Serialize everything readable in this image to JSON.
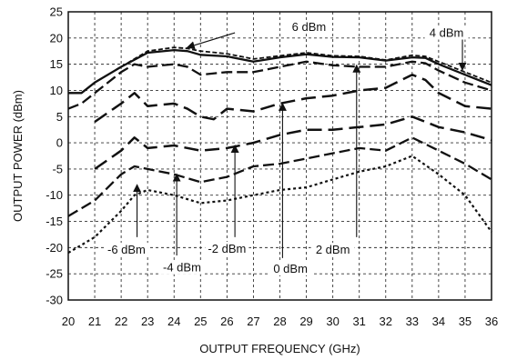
{
  "chart_data": {
    "type": "line",
    "xlabel": "OUTPUT FREQUENCY (GHz)",
    "ylabel": "OUTPUT POWER (dBm)",
    "xlim": [
      20,
      36
    ],
    "ylim": [
      -30,
      25
    ],
    "x_ticks": [
      "20",
      "21",
      "22",
      "23",
      "24",
      "25",
      "26",
      "27",
      "28",
      "29",
      "30",
      "31",
      "32",
      "33",
      "34",
      "35",
      "36"
    ],
    "y_ticks": [
      "25",
      "20",
      "15",
      "10",
      "5",
      "0",
      "-5",
      "-10",
      "-15",
      "-20",
      "-25",
      "-30"
    ],
    "grid": true,
    "series": [
      {
        "name": "6 dBm",
        "style": "dash-short",
        "x": [
          20,
          20.5,
          21,
          22,
          23,
          24,
          24.5,
          25,
          26,
          27,
          28,
          29,
          30,
          31,
          32,
          33,
          33.5,
          34,
          35,
          36
        ],
        "y": [
          9.5,
          9.5,
          11.5,
          14.5,
          17.5,
          18.2,
          18,
          17.5,
          17,
          16,
          16.6,
          17.2,
          16.6,
          16.5,
          15.8,
          16.7,
          16.5,
          15.5,
          13.5,
          11.5
        ]
      },
      {
        "name": "4 dBm",
        "style": "solid",
        "x": [
          20,
          20.5,
          21,
          22,
          23,
          24,
          24.5,
          25,
          26,
          27,
          28,
          29,
          30,
          31,
          32,
          33,
          33.5,
          34,
          35,
          36
        ],
        "y": [
          9.5,
          9.5,
          11.5,
          14.5,
          17.2,
          17.7,
          17.5,
          16.8,
          16.5,
          15.5,
          16.3,
          16.9,
          16.4,
          16.3,
          15.7,
          16.3,
          16.2,
          15,
          13,
          11
        ]
      },
      {
        "name": "2 dBm",
        "style": "dash-mid",
        "x": [
          20,
          20.5,
          21,
          22,
          22.5,
          23,
          24,
          24.5,
          25,
          26,
          27,
          28,
          29,
          30,
          31,
          32,
          33,
          33.5,
          34,
          35,
          36
        ],
        "y": [
          6.5,
          7.5,
          9.5,
          13.5,
          15,
          14.5,
          15,
          14.5,
          13,
          13.5,
          13.5,
          14.5,
          15.5,
          14.8,
          14.5,
          14.5,
          15.5,
          15.2,
          13.8,
          11.5,
          10
        ]
      },
      {
        "name": "0 dBm",
        "style": "dash-long",
        "x": [
          21,
          22,
          22.5,
          23,
          24,
          24.5,
          25,
          25.5,
          26,
          27,
          28,
          29,
          30,
          31,
          32,
          33,
          33.5,
          34,
          35,
          36
        ],
        "y": [
          4,
          7.5,
          9.5,
          7,
          7.5,
          6.5,
          5,
          4.5,
          6.5,
          6,
          7.5,
          8.5,
          9,
          10,
          10.5,
          13,
          12,
          9.5,
          7,
          6.5
        ]
      },
      {
        "name": "-2 dBm",
        "style": "dash-long",
        "x": [
          21,
          22,
          22.5,
          23,
          24,
          25,
          26,
          27,
          28,
          29,
          30,
          31,
          32,
          33,
          34,
          35,
          36
        ],
        "y": [
          -5,
          -1.5,
          1,
          -1,
          -0.5,
          -1.5,
          -1,
          0,
          1.5,
          2.5,
          2.5,
          3,
          3.5,
          5,
          3,
          2,
          0.5
        ]
      },
      {
        "name": "-4 dBm",
        "style": "dash-mid",
        "x": [
          20,
          21,
          22,
          22.5,
          23,
          24,
          25,
          26,
          27,
          28,
          29,
          30,
          31,
          32,
          33,
          34,
          35,
          36
        ],
        "y": [
          -14,
          -11,
          -6,
          -4.5,
          -5,
          -6,
          -7.5,
          -6.5,
          -4.5,
          -4,
          -3,
          -2,
          -1,
          -1.5,
          1,
          -1.5,
          -4,
          -7
        ]
      },
      {
        "name": "-6 dBm",
        "style": "dotted",
        "x": [
          20,
          21,
          22,
          22.5,
          23,
          24,
          25,
          26,
          27,
          28,
          29,
          30,
          31,
          32,
          33,
          34,
          35,
          36
        ],
        "y": [
          -21,
          -18,
          -13,
          -10,
          -9,
          -10,
          -11.5,
          -11,
          -10,
          -9,
          -8.5,
          -7,
          -5.5,
          -4.5,
          -2.5,
          -6,
          -10,
          -17
        ]
      }
    ],
    "annotations": [
      {
        "text": "6 dBm",
        "label_x": 29.1,
        "label_y": 21.5,
        "arrow_from": [
          26.3,
          21
        ],
        "arrow_to": [
          24.5,
          18.2
        ]
      },
      {
        "text": "4 dBm",
        "label_x": 34.3,
        "label_y": 20.4,
        "arrow_from": [
          34.9,
          19.8
        ],
        "arrow_to": [
          34.9,
          13.9
        ]
      },
      {
        "text": "2 dBm",
        "label_x": 30.0,
        "label_y": -21.0,
        "arrow_from": [
          30.9,
          -18
        ],
        "arrow_to": [
          30.9,
          14.8
        ]
      },
      {
        "text": "0 dBm",
        "label_x": 28.4,
        "label_y": -24.6,
        "arrow_from": [
          28.1,
          -22
        ],
        "arrow_to": [
          28.1,
          7.5
        ]
      },
      {
        "text": "-2 dBm",
        "label_x": 26.0,
        "label_y": -20.8,
        "arrow_from": [
          26.3,
          -18
        ],
        "arrow_to": [
          26.3,
          -0.5
        ]
      },
      {
        "text": "-4 dBm",
        "label_x": 24.3,
        "label_y": -24.4,
        "arrow_from": [
          24.1,
          -21.5
        ],
        "arrow_to": [
          24.1,
          -6
        ]
      },
      {
        "text": "-6 dBm",
        "label_x": 22.2,
        "label_y": -21.0,
        "arrow_from": [
          22.6,
          -18
        ],
        "arrow_to": [
          22.6,
          -8
        ]
      }
    ]
  }
}
